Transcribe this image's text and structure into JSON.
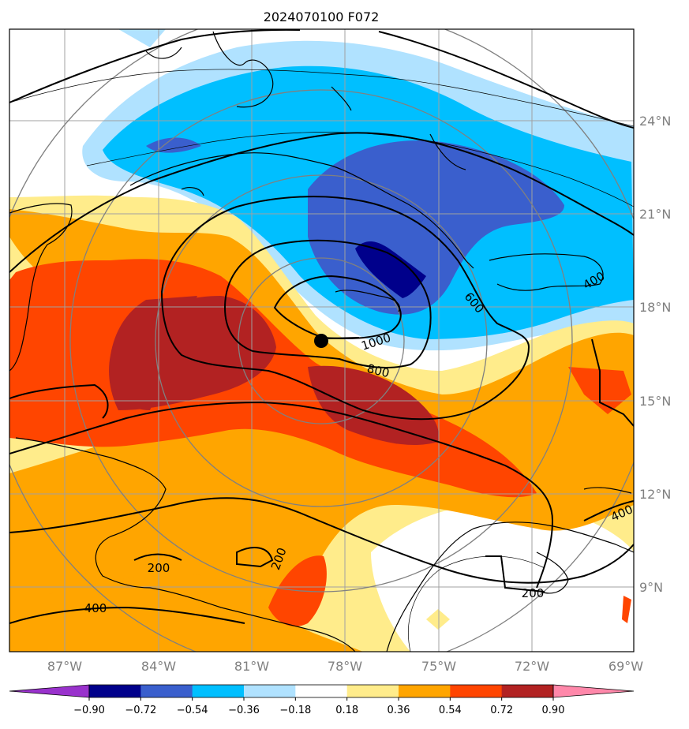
{
  "title": "2024070100 F072",
  "map": {
    "lon_labels": [
      "87°W",
      "84°W",
      "81°W",
      "78°W",
      "75°W",
      "72°W",
      "69°W"
    ],
    "lat_labels": [
      "24°N",
      "21°N",
      "18°N",
      "15°N",
      "12°N",
      "9°N"
    ],
    "contour_labels": [
      "1000",
      "800",
      "600",
      "400",
      "400",
      "200",
      "200",
      "200",
      "400"
    ],
    "storm_center": {
      "lon": -78.7,
      "lat": 16.9
    },
    "colors": {
      "land_lines": "#000000",
      "grid": "#a0a0a0",
      "range_rings": "#808080"
    }
  },
  "colorbar": {
    "levels": [
      "−0.90",
      "−0.72",
      "−0.54",
      "−0.36",
      "−0.18",
      "0.18",
      "0.36",
      "0.54",
      "0.72",
      "0.90"
    ],
    "colors": [
      "#9932cc",
      "#00008b",
      "#3a5fcd",
      "#00bfff",
      "#b0e2ff",
      "#ffffff",
      "#ffec8b",
      "#ffa500",
      "#ff4500",
      "#b22222",
      "#ff88aa"
    ]
  }
}
